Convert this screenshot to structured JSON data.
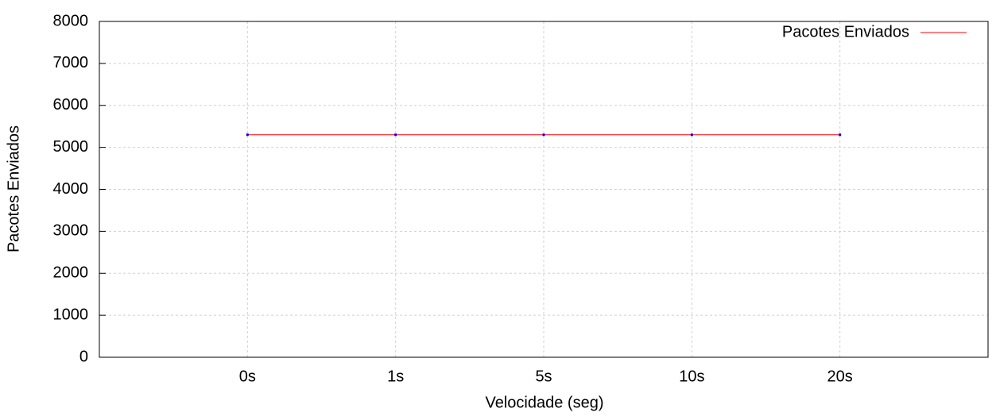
{
  "chart_data": {
    "type": "line",
    "x_label": "Velocidade (seg)",
    "y_label": "Pacotes Enviados",
    "categories": [
      "0s",
      "1s",
      "5s",
      "10s",
      "20s"
    ],
    "series": [
      {
        "name": "Pacotes Enviados",
        "color": "#ff0000",
        "marker_color": "#0000ff",
        "values": [
          5300,
          5300,
          5300,
          5300,
          5300
        ]
      }
    ],
    "ylim": [
      0,
      8000
    ],
    "yticks": [
      0,
      1000,
      2000,
      3000,
      4000,
      5000,
      6000,
      7000,
      8000
    ],
    "grid": true,
    "legend": "top-right"
  }
}
